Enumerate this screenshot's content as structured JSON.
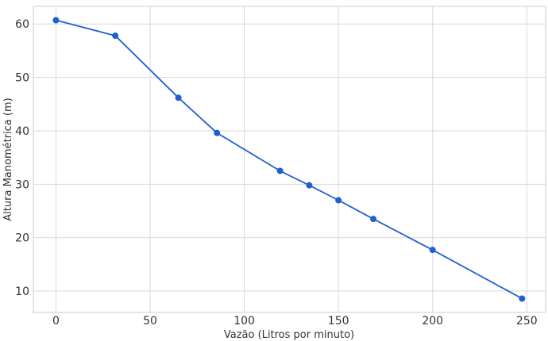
{
  "chart_data": {
    "type": "line",
    "title": "",
    "xlabel": "Vazão (Litros por minuto)",
    "ylabel": "Altura Manométrica (m)",
    "xlim": [
      -12,
      260
    ],
    "ylim": [
      6,
      63.3
    ],
    "xticks": [
      0,
      50,
      100,
      150,
      200,
      250
    ],
    "yticks": [
      10,
      20,
      30,
      40,
      50,
      60
    ],
    "grid": true,
    "color": "#1f5fcf",
    "series": [
      {
        "x": [
          0,
          31.5,
          65,
          85.5,
          119,
          134.5,
          150,
          168.5,
          200,
          247.5
        ],
        "y": [
          60.7,
          57.8,
          46.2,
          39.6,
          32.5,
          29.8,
          27.0,
          23.5,
          17.7,
          8.6
        ]
      }
    ]
  }
}
